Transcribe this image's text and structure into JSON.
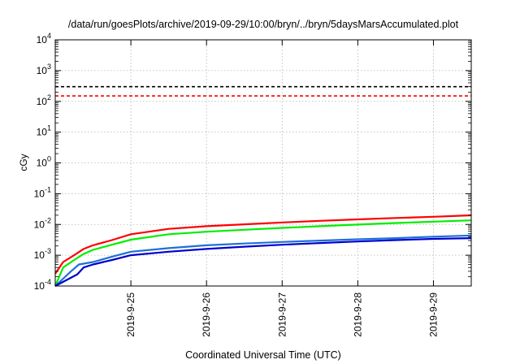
{
  "chart_data": {
    "type": "line",
    "title": "/data/run/goesPlots/archive/2019-09-29/10:00/bryn/../bryn/5daysMarsAccumulated.plot",
    "xlabel": "Coordinated Universal Time (UTC)",
    "ylabel": "cGy",
    "x_tick_labels": [
      "2019-9-25",
      "2019-9-26",
      "2019-9-27",
      "2019-9-28",
      "2019-9-29"
    ],
    "x_tick_dates": [
      "2019-09-25",
      "2019-09-26",
      "2019-09-27",
      "2019-09-28",
      "2019-09-29"
    ],
    "xlim": [
      "2019-09-24T00:00",
      "2019-09-29T12:00"
    ],
    "yscale": "log",
    "ylim": [
      0.0001,
      10000
    ],
    "y_tick_exponents": [
      "-4",
      "-3",
      "-2",
      "-1",
      "0",
      "1",
      "2",
      "3",
      "4"
    ],
    "y_tick_base": "10",
    "grid": true,
    "series": [
      {
        "color": "#000000",
        "dashed": true,
        "x": [
          "2019-09-24T00:00",
          "2019-09-29T12:00"
        ],
        "values": [
          300,
          300
        ]
      },
      {
        "color": "#ff0000",
        "dashed": true,
        "x": [
          "2019-09-24T00:00",
          "2019-09-29T12:00"
        ],
        "values": [
          150,
          150
        ]
      },
      {
        "color": "#ff0000",
        "dashed": false,
        "x": [
          "2019-09-24T00:00",
          "2019-09-24T02:30",
          "2019-09-24T06:00",
          "2019-09-24T09:00",
          "2019-09-24T12:00",
          "2019-09-24T18:00",
          "2019-09-25T00:00",
          "2019-09-25T12:00",
          "2019-09-26T00:00",
          "2019-09-26T12:00",
          "2019-09-27T00:00",
          "2019-09-27T12:00",
          "2019-09-28T00:00",
          "2019-09-28T12:00",
          "2019-09-29T00:00",
          "2019-09-29T12:00"
        ],
        "values": [
          0.00025,
          0.0006,
          0.001,
          0.0016,
          0.0021,
          0.0031,
          0.0048,
          0.0072,
          0.0088,
          0.0101,
          0.0116,
          0.0131,
          0.0146,
          0.0162,
          0.0178,
          0.0198
        ]
      },
      {
        "color": "#00ee00",
        "dashed": false,
        "x": [
          "2019-09-24T00:00",
          "2019-09-24T02:30",
          "2019-09-24T06:00",
          "2019-09-24T09:00",
          "2019-09-24T12:00",
          "2019-09-24T18:00",
          "2019-09-25T00:00",
          "2019-09-25T12:00",
          "2019-09-26T00:00",
          "2019-09-26T12:00",
          "2019-09-27T00:00",
          "2019-09-27T12:00",
          "2019-09-28T00:00",
          "2019-09-28T12:00",
          "2019-09-29T00:00",
          "2019-09-29T12:00"
        ],
        "values": [
          0.0001,
          0.0004,
          0.0007,
          0.0011,
          0.0015,
          0.0022,
          0.0032,
          0.0048,
          0.0058,
          0.0067,
          0.0077,
          0.0088,
          0.0099,
          0.0111,
          0.0123,
          0.0136
        ]
      },
      {
        "color": "#1e6fd9",
        "dashed": false,
        "x": [
          "2019-09-24T00:00",
          "2019-09-24T05:00",
          "2019-09-24T07:30",
          "2019-09-24T12:00",
          "2019-09-24T18:00",
          "2019-09-25T00:00",
          "2019-09-25T12:00",
          "2019-09-26T00:00",
          "2019-09-26T12:00",
          "2019-09-27T00:00",
          "2019-09-27T12:00",
          "2019-09-28T00:00",
          "2019-09-28T12:00",
          "2019-09-29T00:00",
          "2019-09-29T12:00"
        ],
        "values": [
          0.0001,
          0.0003,
          0.0005,
          0.0006,
          0.0009,
          0.0013,
          0.0017,
          0.0021,
          0.0024,
          0.0027,
          0.003,
          0.0033,
          0.0036,
          0.004,
          0.0044
        ]
      },
      {
        "color": "#0000cc",
        "dashed": false,
        "x": [
          "2019-09-24T00:00",
          "2019-09-24T07:00",
          "2019-09-24T09:00",
          "2019-09-24T12:00",
          "2019-09-24T18:00",
          "2019-09-25T00:00",
          "2019-09-25T12:00",
          "2019-09-26T00:00",
          "2019-09-26T12:00",
          "2019-09-27T00:00",
          "2019-09-27T12:00",
          "2019-09-28T00:00",
          "2019-09-28T12:00",
          "2019-09-29T00:00",
          "2019-09-29T12:00"
        ],
        "values": [
          0.0001,
          0.00024,
          0.0004,
          0.0005,
          0.0007,
          0.001,
          0.0013,
          0.0016,
          0.0019,
          0.0022,
          0.0025,
          0.0028,
          0.0031,
          0.0034,
          0.0036
        ]
      }
    ]
  }
}
